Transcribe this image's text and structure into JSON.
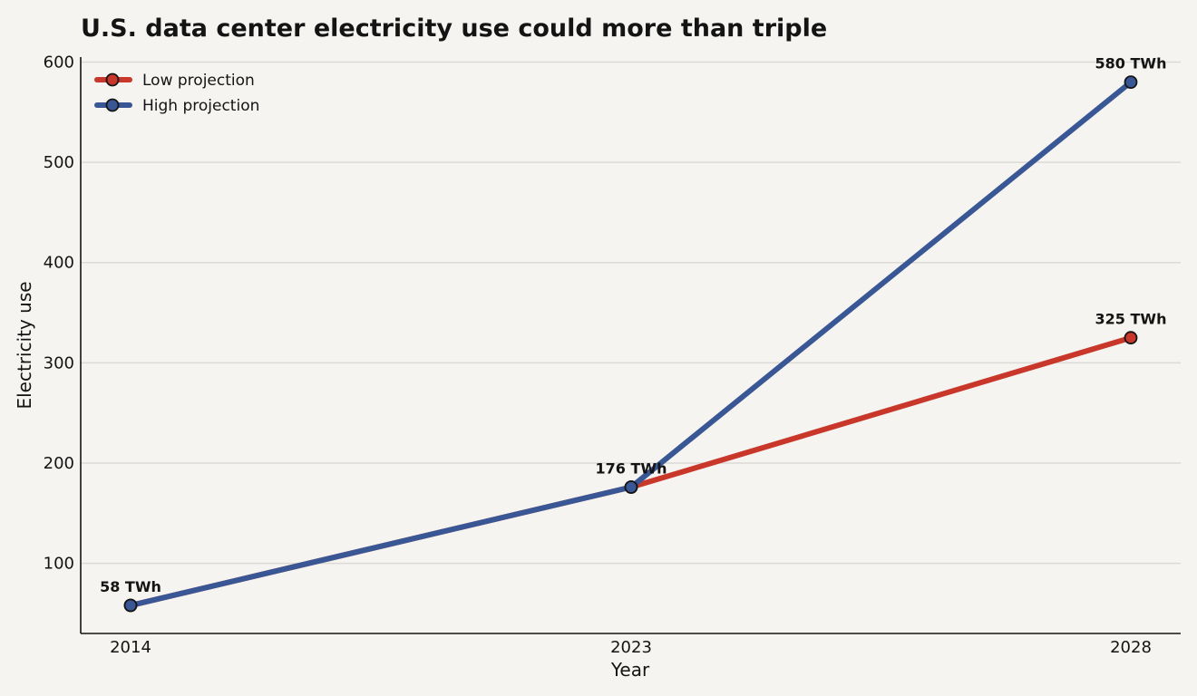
{
  "chart_data": {
    "type": "line",
    "title": "U.S. data center electricity use could more than triple",
    "xlabel": "Year",
    "ylabel": "Electricity use",
    "x": [
      2014,
      2023,
      2028
    ],
    "x_tick_labels": [
      "2014",
      "2023",
      "2028"
    ],
    "ylim": [
      30,
      605
    ],
    "y_ticks": [
      100,
      200,
      300,
      400,
      500,
      600
    ],
    "y_tick_labels": [
      "100",
      "200",
      "300",
      "400",
      "500",
      "600"
    ],
    "grid": "horizontal",
    "legend": "top-left",
    "series": [
      {
        "name": "Low projection",
        "values": [
          58,
          176,
          325
        ],
        "color": "#c8372a"
      },
      {
        "name": "High projection",
        "values": [
          58,
          176,
          580
        ],
        "color": "#3a5795"
      }
    ],
    "annotations": [
      {
        "x": 2014,
        "y": 58,
        "text": "58 TWh"
      },
      {
        "x": 2023,
        "y": 176,
        "text": "176 TWh"
      },
      {
        "x": 2028,
        "y": 325,
        "text": "325 TWh"
      },
      {
        "x": 2028,
        "y": 580,
        "text": "580 TWh"
      }
    ],
    "colors": {
      "background": "#f5f4f1",
      "grid": "#dcdad5",
      "axis": "#141414",
      "marker_edge": "#141414"
    }
  }
}
